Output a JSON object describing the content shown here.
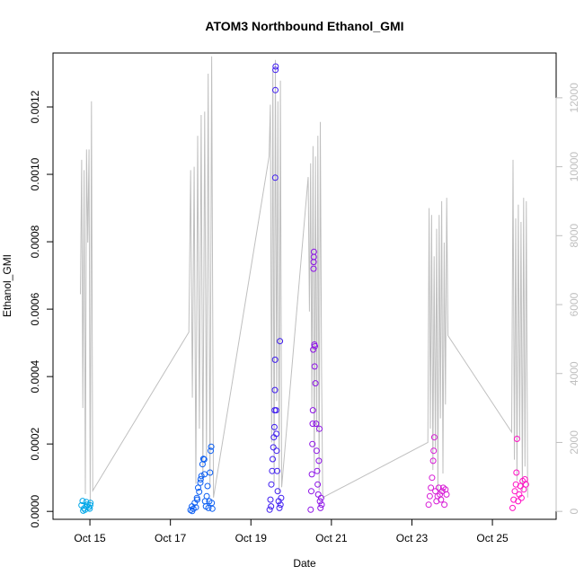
{
  "chart_data": {
    "type": "scatter",
    "title": "ATOM3 Northbound Ethanol_GMI",
    "xlabel": "Date",
    "ylabel": "Ethanol_GMI",
    "x_range": [
      "2017-10-14 02:00",
      "2017-10-26 14:00"
    ],
    "y_range": [
      -2.35e-05,
      0.00136
    ],
    "x_ticks": [
      {
        "date": "2017-10-15",
        "label": "Oct 15"
      },
      {
        "date": "2017-10-17",
        "label": "Oct 17"
      },
      {
        "date": "2017-10-19",
        "label": "Oct 19"
      },
      {
        "date": "2017-10-21",
        "label": "Oct 21"
      },
      {
        "date": "2017-10-23",
        "label": "Oct 23"
      },
      {
        "date": "2017-10-25",
        "label": "Oct 25"
      }
    ],
    "y_ticks": [
      {
        "value": 0.0,
        "label": "0.0000"
      },
      {
        "value": 0.0002,
        "label": "0.0002"
      },
      {
        "value": 0.0004,
        "label": "0.0004"
      },
      {
        "value": 0.0006,
        "label": "0.0006"
      },
      {
        "value": 0.0008,
        "label": "0.0008"
      },
      {
        "value": 0.001,
        "label": "0.0010"
      },
      {
        "value": 0.0012,
        "label": "0.0012"
      }
    ],
    "y2_ticks": [
      {
        "value": 0,
        "label": "0"
      },
      {
        "value": 2000,
        "label": "2000"
      },
      {
        "value": 4000,
        "label": "4000"
      },
      {
        "value": 6000,
        "label": "6000"
      },
      {
        "value": 8000,
        "label": "8000"
      },
      {
        "value": 10000,
        "label": "10000"
      },
      {
        "value": 12000,
        "label": "12000"
      }
    ],
    "y2_range": [
      -230,
      13300
    ],
    "grid": false,
    "legend": "none",
    "point_colors_by_flight": [
      "#00a7e8",
      "#0a5df2",
      "#3e1cf0",
      "#8d12e6",
      "#d719d6",
      "#ff10c4"
    ],
    "secondary_line_color": "#bfbfbf",
    "series": [
      {
        "values": [
          {
            "x": "2017-10-14 19:00",
            "y": 1.8e-05
          },
          {
            "x": "2017-10-14 19:40",
            "y": 3.1e-05
          },
          {
            "x": "2017-10-14 20:30",
            "y": 9e-06
          },
          {
            "x": "2017-10-14 21:10",
            "y": 5e-06
          },
          {
            "x": "2017-10-14 21:50",
            "y": 2.8e-05
          },
          {
            "x": "2017-10-14 22:30",
            "y": 2e-05
          },
          {
            "x": "2017-10-14 23:20",
            "y": 1.2e-05
          },
          {
            "x": "2017-10-15 00:10",
            "y": 1.8e-05
          },
          {
            "x": "2017-10-14 20:00",
            "y": 2e-06
          },
          {
            "x": "2017-10-14 22:00",
            "y": 1.5e-05
          },
          {
            "x": "2017-10-14 23:50",
            "y": 8e-06
          },
          {
            "x": "2017-10-15 00:20",
            "y": 2.5e-05
          }
        ]
      },
      {
        "values": [
          {
            "x": "2017-10-17 12:00",
            "y": 4e-06
          },
          {
            "x": "2017-10-17 12:50",
            "y": 1.5e-05
          },
          {
            "x": "2017-10-17 13:40",
            "y": 8e-06
          },
          {
            "x": "2017-10-17 14:30",
            "y": 2.5e-05
          },
          {
            "x": "2017-10-17 15:10",
            "y": 1.2e-05
          },
          {
            "x": "2017-10-17 15:50",
            "y": 4e-05
          },
          {
            "x": "2017-10-17 16:30",
            "y": 7e-05
          },
          {
            "x": "2017-10-17 17:10",
            "y": 5.8e-05
          },
          {
            "x": "2017-10-17 17:50",
            "y": 8.5e-05
          },
          {
            "x": "2017-10-17 18:30",
            "y": 0.000105
          },
          {
            "x": "2017-10-17 19:10",
            "y": 0.00014
          },
          {
            "x": "2017-10-17 19:40",
            "y": 0.000156
          },
          {
            "x": "2017-10-17 20:10",
            "y": 0.000154
          },
          {
            "x": "2017-10-17 20:40",
            "y": 3e-05
          },
          {
            "x": "2017-10-17 21:10",
            "y": 1.5e-05
          },
          {
            "x": "2017-10-17 21:40",
            "y": 4.5e-05
          },
          {
            "x": "2017-10-17 22:10",
            "y": 7.5e-05
          },
          {
            "x": "2017-10-17 22:40",
            "y": 1e-05
          },
          {
            "x": "2017-10-17 23:10",
            "y": 3e-05
          },
          {
            "x": "2017-10-17 23:40",
            "y": 0.000115
          },
          {
            "x": "2017-10-18 00:00",
            "y": 0.00018
          },
          {
            "x": "2017-10-18 00:20",
            "y": 0.000192
          },
          {
            "x": "2017-10-18 00:40",
            "y": 2.5e-05
          },
          {
            "x": "2017-10-18 01:00",
            "y": 8e-06
          },
          {
            "x": "2017-10-17 13:00",
            "y": 1e-06
          },
          {
            "x": "2017-10-17 16:00",
            "y": 3.5e-05
          },
          {
            "x": "2017-10-17 18:00",
            "y": 9.5e-05
          },
          {
            "x": "2017-10-17 20:20",
            "y": 0.00011
          }
        ]
      },
      {
        "values": [
          {
            "x": "2017-10-19 11:10",
            "y": 5e-06
          },
          {
            "x": "2017-10-19 11:40",
            "y": 3.5e-05
          },
          {
            "x": "2017-10-19 12:10",
            "y": 8e-05
          },
          {
            "x": "2017-10-19 12:40",
            "y": 0.00012
          },
          {
            "x": "2017-10-19 13:00",
            "y": 0.000155
          },
          {
            "x": "2017-10-19 13:20",
            "y": 0.00019
          },
          {
            "x": "2017-10-19 13:40",
            "y": 0.00022
          },
          {
            "x": "2017-10-19 14:00",
            "y": 0.00025
          },
          {
            "x": "2017-10-19 14:10",
            "y": 0.0003
          },
          {
            "x": "2017-10-19 14:20",
            "y": 0.00036
          },
          {
            "x": "2017-10-19 14:25",
            "y": 0.00045
          },
          {
            "x": "2017-10-19 14:30",
            "y": 0.00099
          },
          {
            "x": "2017-10-19 14:35",
            "y": 0.00125
          },
          {
            "x": "2017-10-19 14:40",
            "y": 0.00131
          },
          {
            "x": "2017-10-19 14:45",
            "y": 0.00132
          },
          {
            "x": "2017-10-19 15:00",
            "y": 0.0003
          },
          {
            "x": "2017-10-19 15:20",
            "y": 0.00018
          },
          {
            "x": "2017-10-19 15:40",
            "y": 0.00012
          },
          {
            "x": "2017-10-19 16:00",
            "y": 6e-05
          },
          {
            "x": "2017-10-19 16:30",
            "y": 3e-05
          },
          {
            "x": "2017-10-19 17:00",
            "y": 1e-05
          },
          {
            "x": "2017-10-19 17:20",
            "y": 0.000505
          },
          {
            "x": "2017-10-19 17:40",
            "y": 2e-05
          },
          {
            "x": "2017-10-19 18:00",
            "y": 4e-05
          },
          {
            "x": "2017-10-19 12:00",
            "y": 1.5e-05
          },
          {
            "x": "2017-10-19 15:10",
            "y": 0.00023
          }
        ]
      },
      {
        "values": [
          {
            "x": "2017-10-20 11:40",
            "y": 5e-06
          },
          {
            "x": "2017-10-20 12:00",
            "y": 6e-05
          },
          {
            "x": "2017-10-20 12:20",
            "y": 0.00011
          },
          {
            "x": "2017-10-20 12:40",
            "y": 0.0002
          },
          {
            "x": "2017-10-20 13:00",
            "y": 0.0003
          },
          {
            "x": "2017-10-20 13:10",
            "y": 0.00048
          },
          {
            "x": "2017-10-20 13:20",
            "y": 0.00072
          },
          {
            "x": "2017-10-20 13:25",
            "y": 0.00074
          },
          {
            "x": "2017-10-20 13:30",
            "y": 0.000755
          },
          {
            "x": "2017-10-20 13:35",
            "y": 0.00077
          },
          {
            "x": "2017-10-20 13:50",
            "y": 0.000495
          },
          {
            "x": "2017-10-20 14:10",
            "y": 0.00049
          },
          {
            "x": "2017-10-20 14:30",
            "y": 0.00038
          },
          {
            "x": "2017-10-20 14:50",
            "y": 0.00026
          },
          {
            "x": "2017-10-20 15:10",
            "y": 0.00018
          },
          {
            "x": "2017-10-20 15:30",
            "y": 0.00012
          },
          {
            "x": "2017-10-20 15:50",
            "y": 8e-05
          },
          {
            "x": "2017-10-20 16:10",
            "y": 5e-05
          },
          {
            "x": "2017-10-20 16:30",
            "y": 0.00015
          },
          {
            "x": "2017-10-20 16:50",
            "y": 0.000245
          },
          {
            "x": "2017-10-20 17:10",
            "y": 3e-05
          },
          {
            "x": "2017-10-20 17:30",
            "y": 1e-05
          },
          {
            "x": "2017-10-20 17:50",
            "y": 4e-05
          },
          {
            "x": "2017-10-20 18:10",
            "y": 2e-05
          },
          {
            "x": "2017-10-20 12:50",
            "y": 0.00026
          },
          {
            "x": "2017-10-20 14:00",
            "y": 0.00043
          }
        ]
      },
      {
        "values": [
          {
            "x": "2017-10-23 10:00",
            "y": 2e-05
          },
          {
            "x": "2017-10-23 10:40",
            "y": 4.5e-05
          },
          {
            "x": "2017-10-23 11:20",
            "y": 7e-05
          },
          {
            "x": "2017-10-23 12:00",
            "y": 0.0001
          },
          {
            "x": "2017-10-23 12:40",
            "y": 0.00015
          },
          {
            "x": "2017-10-23 13:00",
            "y": 0.00018
          },
          {
            "x": "2017-10-23 13:20",
            "y": 0.00022
          },
          {
            "x": "2017-10-23 14:00",
            "y": 6e-05
          },
          {
            "x": "2017-10-23 14:40",
            "y": 3e-05
          },
          {
            "x": "2017-10-23 15:20",
            "y": 4.5e-05
          },
          {
            "x": "2017-10-23 16:00",
            "y": 7e-05
          },
          {
            "x": "2017-10-23 16:40",
            "y": 5e-05
          },
          {
            "x": "2017-10-23 17:20",
            "y": 3.5e-05
          },
          {
            "x": "2017-10-23 18:00",
            "y": 6e-05
          },
          {
            "x": "2017-10-23 18:40",
            "y": 7e-05
          },
          {
            "x": "2017-10-23 19:20",
            "y": 2e-05
          },
          {
            "x": "2017-10-23 20:00",
            "y": 6.5e-05
          },
          {
            "x": "2017-10-23 20:40",
            "y": 5e-05
          }
        ]
      },
      {
        "values": [
          {
            "x": "2017-10-25 12:00",
            "y": 1e-05
          },
          {
            "x": "2017-10-25 12:40",
            "y": 3.5e-05
          },
          {
            "x": "2017-10-25 13:20",
            "y": 6e-05
          },
          {
            "x": "2017-10-25 14:00",
            "y": 8e-05
          },
          {
            "x": "2017-10-25 14:20",
            "y": 0.000115
          },
          {
            "x": "2017-10-25 14:40",
            "y": 0.000215
          },
          {
            "x": "2017-10-25 15:20",
            "y": 3e-05
          },
          {
            "x": "2017-10-25 16:00",
            "y": 5e-05
          },
          {
            "x": "2017-10-25 16:40",
            "y": 7.5e-05
          },
          {
            "x": "2017-10-25 17:20",
            "y": 4e-05
          },
          {
            "x": "2017-10-25 18:00",
            "y": 9e-05
          },
          {
            "x": "2017-10-25 18:40",
            "y": 6.5e-05
          },
          {
            "x": "2017-10-25 19:20",
            "y": 9.5e-05
          },
          {
            "x": "2017-10-25 20:00",
            "y": 8e-05
          }
        ]
      }
    ],
    "secondary_series": {
      "flights": [
        [
          "2017-10-14 18:20",
          "2017-10-15 01:40",
          [
            6300,
            10200,
            3000,
            9900,
            500,
            10500,
            7800,
            10500,
            200,
            11900,
            600
          ]
        ],
        [
          "2017-10-17 11:00",
          "2017-10-18 01:40",
          [
            5200,
            9900,
            3300,
            10000,
            800,
            10900,
            2400,
            11500,
            900,
            11600,
            1500,
            12700,
            700,
            13200,
            400
          ]
        ],
        [
          "2017-10-19 10:50",
          "2017-10-19 18:20",
          [
            10300,
            11800,
            2000,
            12800,
            800,
            13100,
            3200,
            11900,
            500,
            12500,
            700
          ]
        ],
        [
          "2017-10-20 10:10",
          "2017-10-20 18:50",
          [
            9700,
            5800,
            10100,
            3000,
            10600,
            1200,
            10300,
            2300,
            10900,
            600,
            11300,
            4100,
            400
          ]
        ],
        [
          "2017-10-23 09:30",
          "2017-10-23 21:30",
          [
            2000,
            8800,
            2400,
            8600,
            1200,
            7400,
            1800,
            8200,
            600,
            8600,
            2700,
            9000,
            1100,
            7800,
            3100,
            9100,
            5100
          ]
        ],
        [
          "2017-10-25 11:30",
          "2017-10-25 21:00",
          [
            2300,
            10200,
            1500,
            8500,
            900,
            8900,
            2100,
            8400,
            600,
            9100,
            1300,
            9000,
            400
          ]
        ]
      ]
    }
  }
}
